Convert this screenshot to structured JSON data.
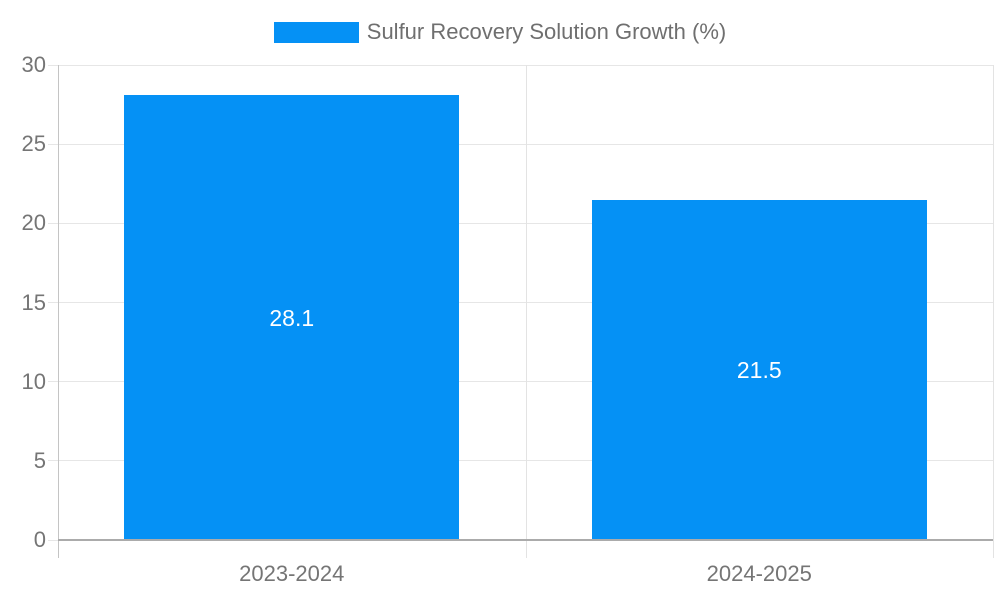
{
  "chart_data": {
    "type": "bar",
    "title": "",
    "legend": {
      "label": "Sulfur Recovery Solution Growth (%)",
      "position": "top"
    },
    "categories": [
      "2023-2024",
      "2024-2025"
    ],
    "series": [
      {
        "name": "Sulfur Recovery Solution Growth (%)",
        "values": [
          28.1,
          21.5
        ]
      }
    ],
    "data_labels": [
      "28.1",
      "21.5"
    ],
    "xlabel": "",
    "ylabel": "",
    "ylim": [
      0,
      30
    ],
    "yticks": [
      0,
      5,
      10,
      15,
      20,
      25,
      30
    ],
    "grid": true,
    "colors": {
      "bar": "#0591F5",
      "bar_label": "#FFFFFF",
      "axis_text": "#757575",
      "legend_text": "#6F6F6F",
      "gridline": "#E6E6E6",
      "baseline": "#ABABAB",
      "axis_line": "#C4C4C4",
      "divider": "#E3E3E3",
      "background": "#FFFFFF"
    }
  }
}
